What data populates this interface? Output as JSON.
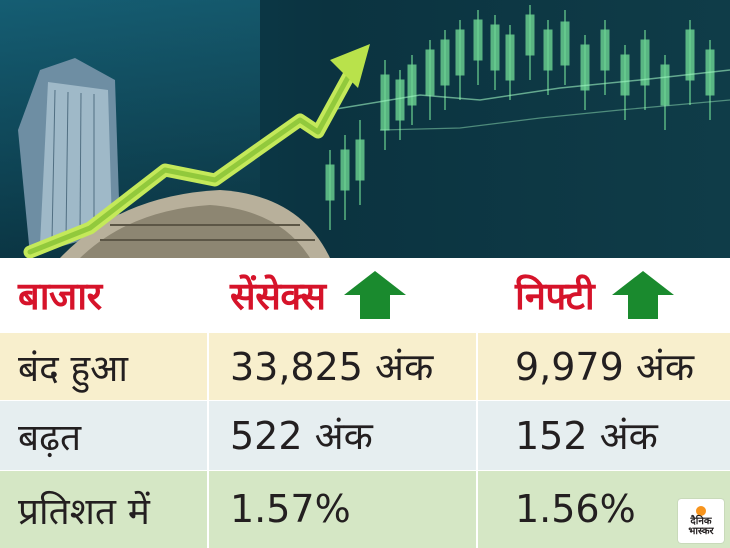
{
  "table": {
    "header": {
      "col1": "बाजार",
      "col2": "सेंसेक्स",
      "col3": "निफ्टी"
    },
    "rows": [
      {
        "label": "बंद हुआ",
        "sensex": "33,825 अंक",
        "nifty": "9,979 अंक"
      },
      {
        "label": "बढ़त",
        "sensex": "522 अंक",
        "nifty": "152 अंक"
      },
      {
        "label": "प्रतिशत में",
        "sensex": "1.57%",
        "nifty": "1.56%"
      }
    ]
  },
  "logo": {
    "line1": "दैनिक",
    "line2": "भास्कर"
  },
  "colors": {
    "header_text": "#d6132a",
    "arrow_green": "#1a8a2e",
    "row_close_bg": "#f8efcd",
    "row_rise_bg": "#e6eef0",
    "row_pct_bg": "#d5e7c5",
    "trend_arrow": "#8cc63f",
    "hero_bg": "#0a3d4a"
  },
  "icons": {
    "trend": "up-trend-arrow-icon",
    "sensex_direction": "up-arrow-icon",
    "nifty_direction": "up-arrow-icon",
    "logo": "dainik-bhaskar-logo-icon"
  }
}
